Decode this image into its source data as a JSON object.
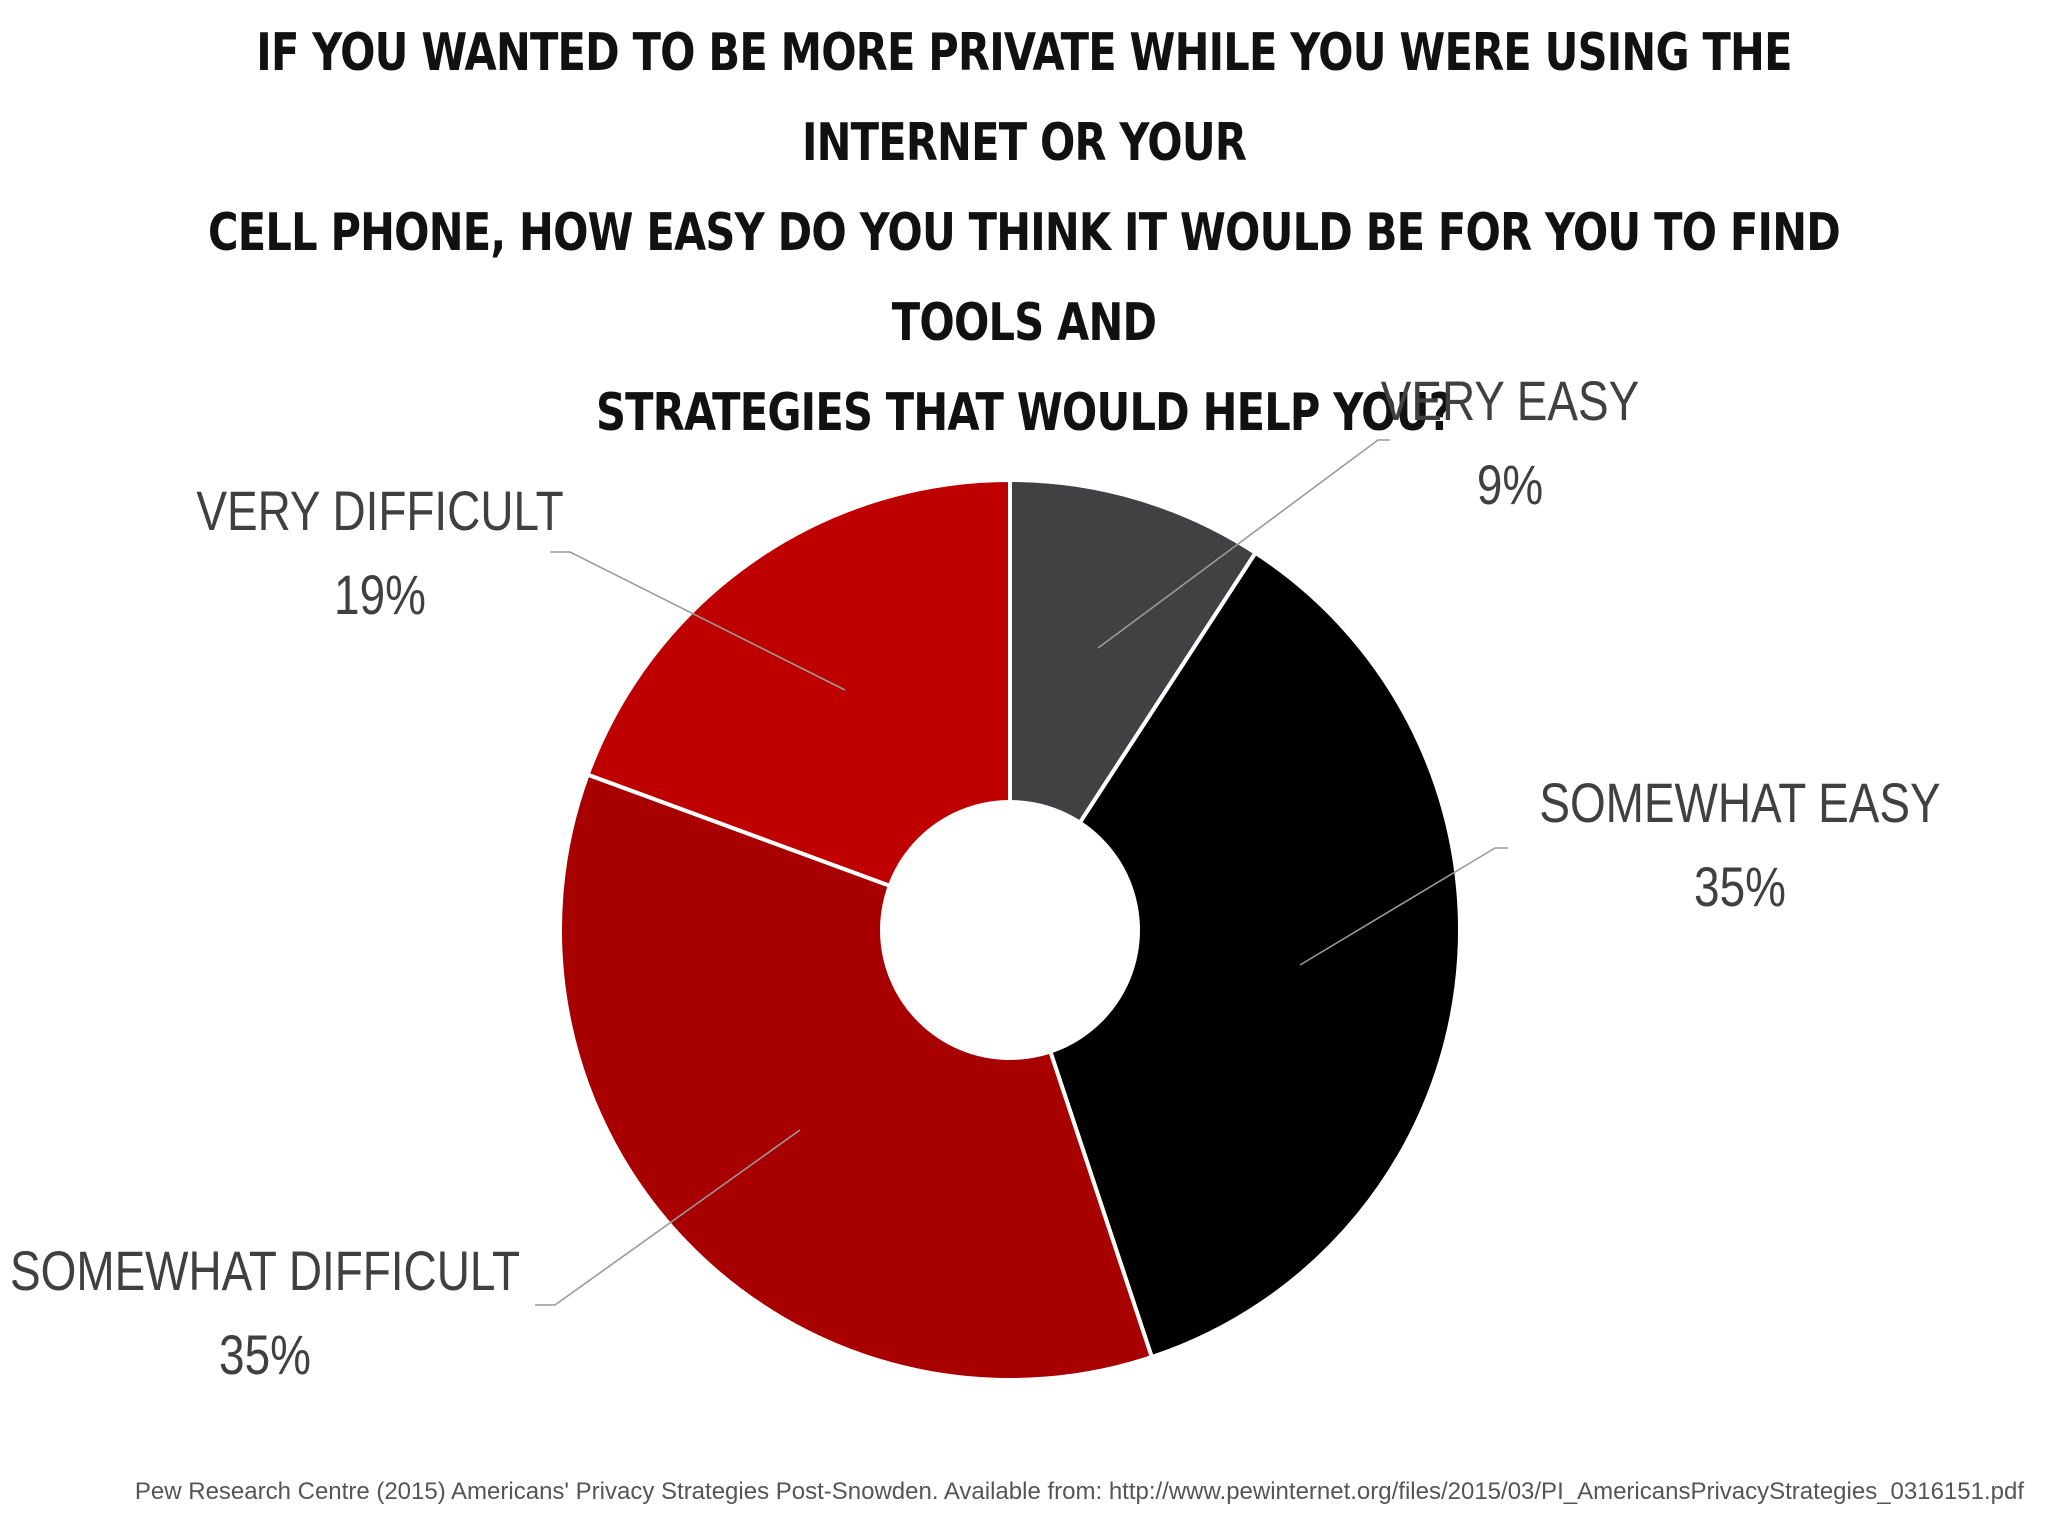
{
  "chart_data": {
    "type": "pie",
    "style": "donut",
    "title_lines": [
      "IF YOU WANTED TO BE MORE PRIVATE WHILE YOU WERE USING THE INTERNET OR YOUR",
      "CELL PHONE, HOW EASY DO YOU THINK IT WOULD BE FOR YOU TO FIND TOOLS AND",
      "STRATEGIES THAT WOULD HELP YOU?"
    ],
    "slices": [
      {
        "label": "VERY EASY",
        "value": 9,
        "value_label": "9%",
        "color": "#414042"
      },
      {
        "label": "SOMEWHAT EASY",
        "value": 35,
        "value_label": "35%",
        "color": "#000000"
      },
      {
        "label": "SOMEWHAT DIFFICULT",
        "value": 35,
        "value_label": "35%",
        "color": "#a80000"
      },
      {
        "label": "VERY DIFFICULT",
        "value": 19,
        "value_label": "19%",
        "color": "#be0000"
      }
    ],
    "start": "12 o'clock",
    "direction": "clockwise",
    "legend": "none"
  },
  "source": "Pew Research Centre (2015) Americans' Privacy Strategies Post-Snowden. Available from: http://www.pewinternet.org/files/2015/03/PI_AmericansPrivacyStrategies_0316151.pdf"
}
